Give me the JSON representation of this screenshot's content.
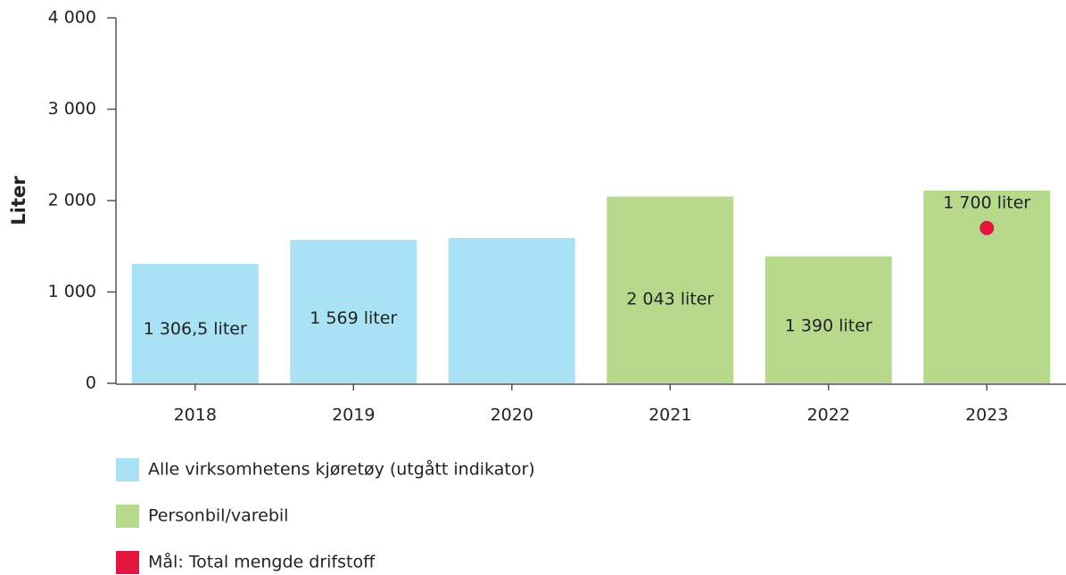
{
  "chart_data": {
    "type": "bar",
    "ylabel": "Liter",
    "categories": [
      "2018",
      "2019",
      "2020",
      "2021",
      "2022",
      "2023"
    ],
    "series": [
      {
        "name": "Alle virksomhetens kjøretøy (utgått indikator)",
        "color": "#a8e2f4",
        "values": [
          1306.5,
          1569,
          1590,
          null,
          null,
          null
        ],
        "value_labels": [
          "1 306,5 liter",
          "1 569 liter",
          null,
          null,
          null,
          null
        ]
      },
      {
        "name": "Personbil/varebil",
        "color": "#b6d98c",
        "values": [
          null,
          null,
          null,
          2043,
          1390,
          2110
        ],
        "value_labels": [
          null,
          null,
          null,
          "2 043 liter",
          "1 390 liter",
          null
        ]
      },
      {
        "name": "Mål: Total mengde drifstoff",
        "color": "#e2163f",
        "type": "scatter",
        "values": [
          null,
          null,
          null,
          null,
          null,
          1700
        ],
        "value_labels": [
          null,
          null,
          null,
          null,
          null,
          "1 700 liter"
        ]
      }
    ],
    "ylim": [
      0,
      4000
    ],
    "yticks": [
      0,
      {
        "value": 1000,
        "label": "1 000"
      },
      {
        "value": 2000,
        "label": "2 000"
      },
      {
        "value": 3000,
        "label": "3 000"
      },
      {
        "value": 4000,
        "label": "4 000"
      }
    ],
    "grid": false,
    "legend": "bottom"
  }
}
